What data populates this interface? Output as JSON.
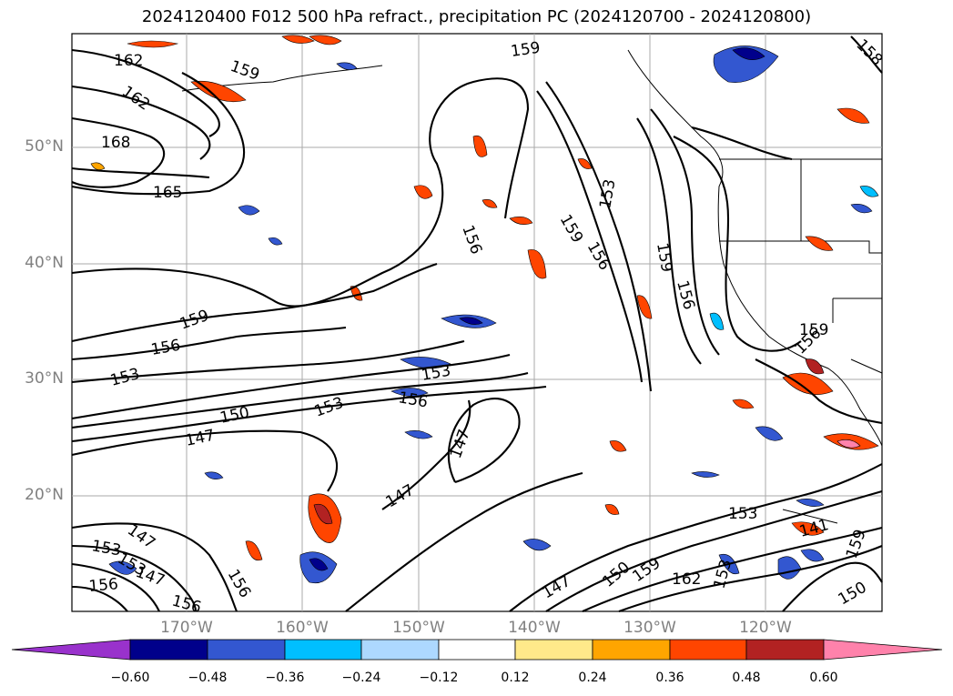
{
  "title": "2024120400 F012 500 hPa refract., precipitation PC (2024120700 - 2024120800)",
  "map": {
    "lat_labels": [
      "50°N",
      "40°N",
      "30°N",
      "20°N"
    ],
    "lon_labels": [
      "170°W",
      "160°W",
      "150°W",
      "140°W",
      "130°W",
      "120°W"
    ],
    "contour_labels": [
      "162",
      "162",
      "159",
      "159",
      "168",
      "165",
      "156",
      "153",
      "159",
      "156",
      "159",
      "156",
      "159",
      "156",
      "153",
      "153",
      "156",
      "150",
      "153",
      "147",
      "147",
      "147",
      "147",
      "153",
      "147",
      "150",
      "159",
      "162",
      "153",
      "150",
      "153",
      "156",
      "156",
      "156",
      "159",
      "156",
      "158",
      "141",
      "159",
      "147",
      "153"
    ]
  },
  "colorbar": {
    "ticks": [
      "−0.60",
      "−0.48",
      "−0.36",
      "−0.24",
      "−0.12",
      "0.12",
      "0.24",
      "0.36",
      "0.48",
      "0.60"
    ],
    "colors": [
      "#9932cc",
      "#00008b",
      "#3357d0",
      "#00bfff",
      "#add8ff",
      "#ffffff",
      "#ffe98a",
      "#ffa500",
      "#ff4500",
      "#b22222",
      "#ff82ab"
    ]
  }
}
